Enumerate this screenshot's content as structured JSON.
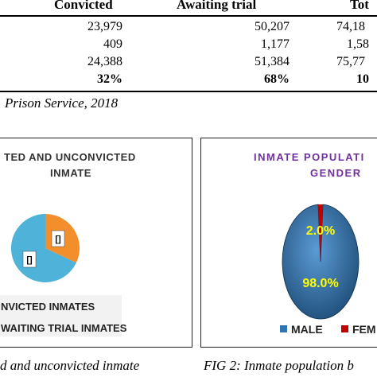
{
  "table": {
    "headers": [
      "Convicted",
      "Awaiting trial",
      "Tot"
    ],
    "rows": [
      [
        "23,979",
        "50,207",
        "74,18"
      ],
      [
        "409",
        "1,177",
        "1,58"
      ],
      [
        "24,388",
        "51,384",
        "75,77"
      ],
      [
        "32%",
        "68%",
        "10"
      ]
    ]
  },
  "source_text": "Prison Service, 2018",
  "fig1": {
    "title_line1": "TED AND UNCONVICTED",
    "title_line2": "INMATE",
    "legend": [
      "NVICTED INMATES",
      "WAITING TRIAL INMATES"
    ],
    "caption": "d and unconvicted inmate",
    "colors": {
      "convicted": "#f28e2b",
      "awaiting": "#4fb3d9"
    },
    "chart_data": {
      "type": "pie",
      "labels": [
        "CONVICTED INMATES",
        "AWAITING TRIAL INMATES"
      ],
      "values": [
        32,
        68
      ],
      "data_labels": [
        "[]",
        "[]"
      ]
    }
  },
  "fig2": {
    "title_line1": "INMATE POPULATI",
    "title_line2": "GENDER",
    "legend": [
      "MALE",
      "FEM"
    ],
    "caption": "FIG 2: Inmate population b",
    "colors": {
      "male": "#2e75b6",
      "female": "#c00000"
    },
    "chart_data": {
      "type": "pie",
      "labels": [
        "MALE",
        "FEMALE"
      ],
      "values": [
        98.0,
        2.0
      ],
      "data_labels": [
        "98.0%",
        "2.0%"
      ]
    }
  }
}
